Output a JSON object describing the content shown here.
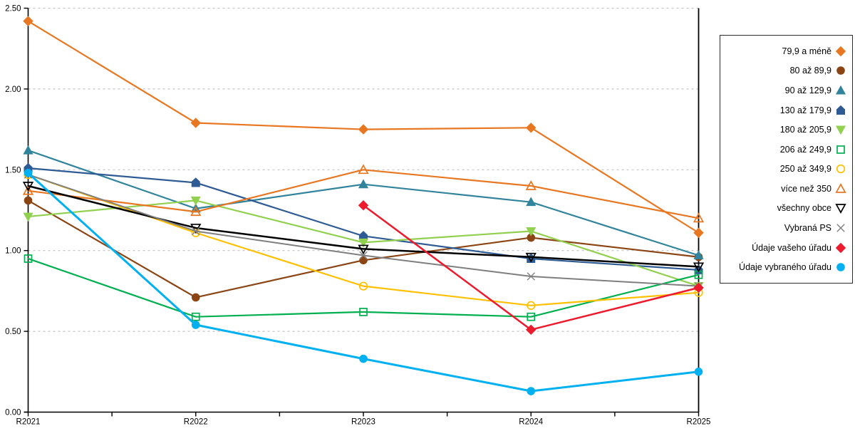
{
  "chart_data": {
    "type": "line",
    "title": "",
    "xlabel": "",
    "ylabel": "",
    "categories": [
      "R2021",
      "R2022",
      "R2023",
      "R2024",
      "R2025"
    ],
    "ylim": [
      0,
      2.5
    ],
    "y_tick_step": 0.5,
    "y_tick_labels": [
      "0.00",
      "0.50",
      "1.00",
      "1.50",
      "2.00",
      "2.50"
    ],
    "grid": "horizontal-dashed",
    "legend_position": "right-outside",
    "grid_color": "#c3c3c3",
    "axis_color": "#000000",
    "series": [
      {
        "name": "79,9 a méně",
        "color": "#e87722",
        "marker": "diamond",
        "fill": "solid",
        "line_width": 2.2,
        "values": [
          2.42,
          1.79,
          1.75,
          1.76,
          1.11
        ]
      },
      {
        "name": "80 až 89,9",
        "color": "#8b4514",
        "marker": "circle",
        "fill": "solid",
        "line_width": 2.2,
        "values": [
          1.31,
          0.71,
          0.94,
          1.08,
          0.96
        ]
      },
      {
        "name": "90 až 129,9",
        "color": "#31849b",
        "marker": "triangle-up",
        "fill": "solid",
        "line_width": 2.2,
        "values": [
          1.62,
          1.26,
          1.41,
          1.3,
          0.97
        ]
      },
      {
        "name": "130 až 179,9",
        "color": "#2e5b94",
        "marker": "pentagon",
        "fill": "solid",
        "line_width": 2.2,
        "values": [
          1.51,
          1.42,
          1.09,
          0.95,
          0.88
        ]
      },
      {
        "name": "180 až 205,9",
        "color": "#92d050",
        "marker": "triangle-down",
        "fill": "solid",
        "line_width": 2.2,
        "values": [
          1.21,
          1.31,
          1.05,
          1.12,
          0.78
        ]
      },
      {
        "name": "206 až 249,9",
        "color": "#00b050",
        "marker": "square",
        "fill": "open",
        "line_width": 2.2,
        "values": [
          0.95,
          0.59,
          0.62,
          0.59,
          0.85
        ]
      },
      {
        "name": "250 až 349,9",
        "color": "#ffc000",
        "marker": "circle",
        "fill": "open",
        "line_width": 2.2,
        "values": [
          1.47,
          1.11,
          0.78,
          0.66,
          0.74
        ]
      },
      {
        "name": "více než 350",
        "color": "#e87722",
        "marker": "triangle-up",
        "fill": "open",
        "line_width": 2.2,
        "values": [
          1.37,
          1.24,
          1.5,
          1.4,
          1.2
        ]
      },
      {
        "name": "všechny obce",
        "color": "#000000",
        "marker": "triangle-down",
        "fill": "open",
        "line_width": 2.5,
        "values": [
          1.4,
          1.14,
          1.01,
          0.96,
          0.9
        ]
      },
      {
        "name": "Vybraná PS",
        "color": "#7f7f7f",
        "marker": "x",
        "fill": "open",
        "line_width": 2.0,
        "values": [
          1.47,
          1.12,
          0.97,
          0.84,
          0.78
        ]
      },
      {
        "name": "Údaje vašeho úřadu",
        "color": "#ec1b2e",
        "marker": "diamond",
        "fill": "solid",
        "line_width": 2.5,
        "values": [
          null,
          null,
          1.28,
          0.51,
          0.77
        ]
      },
      {
        "name": "Údaje vybraného úřadu",
        "color": "#00b0f0",
        "marker": "circle",
        "fill": "solid",
        "line_width": 3.0,
        "values": [
          1.48,
          0.54,
          0.33,
          0.13,
          0.25
        ]
      }
    ]
  }
}
